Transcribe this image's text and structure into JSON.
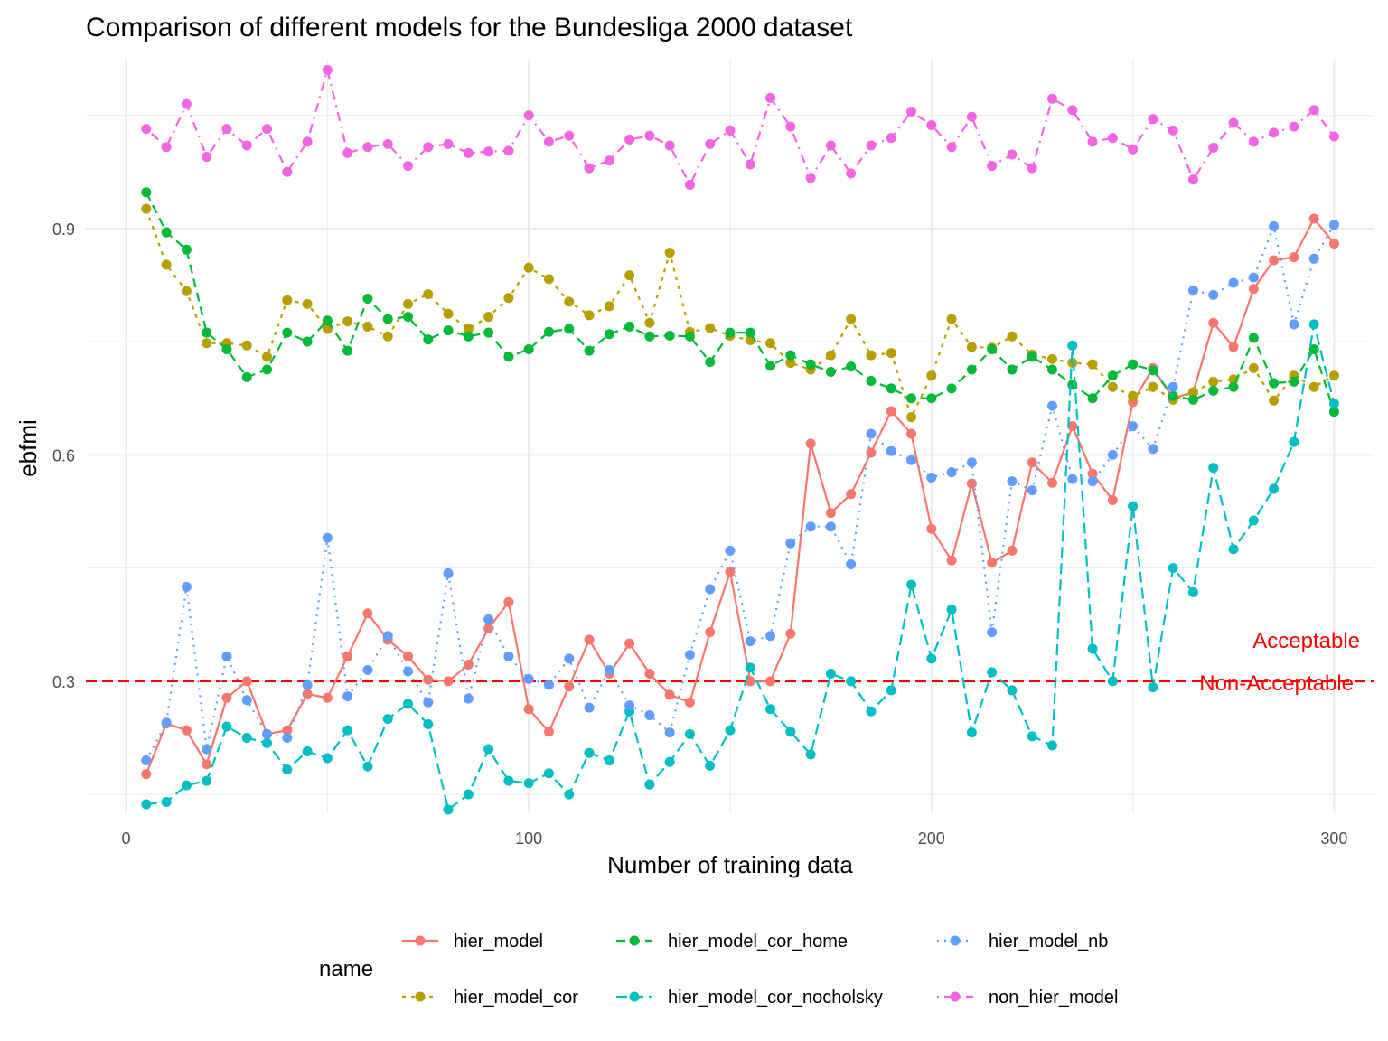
{
  "chart_data": {
    "type": "line",
    "title": "Comparison of different models for the Bundesliga 2000 dataset",
    "xlabel": "Number of training data",
    "ylabel": "ebfmi",
    "xlim": [
      -10,
      310
    ],
    "ylim": [
      0.125,
      1.125
    ],
    "x_ticks": [
      0,
      100,
      200,
      300
    ],
    "x_tick_labels": [
      "0",
      "100",
      "200",
      "300"
    ],
    "y_ticks": [
      0.3,
      0.6,
      0.9
    ],
    "y_tick_labels": [
      "0.3",
      "0.6",
      "0.9"
    ],
    "grid": true,
    "legend": {
      "title": "name",
      "position": "bottom",
      "order": [
        "hier_model",
        "hier_model_cor_home",
        "hier_model_nb",
        "hier_model_cor",
        "hier_model_cor_nocholsky",
        "non_hier_model"
      ]
    },
    "reference_line": {
      "y": 0.3,
      "color": "#ff0000",
      "label_above": "Acceptable",
      "label_below": "Non-Acceptable"
    },
    "x": [
      5,
      10,
      15,
      20,
      25,
      30,
      35,
      40,
      45,
      50,
      55,
      60,
      65,
      70,
      75,
      80,
      85,
      90,
      95,
      100,
      105,
      110,
      115,
      120,
      125,
      130,
      135,
      140,
      145,
      150,
      155,
      160,
      165,
      170,
      175,
      180,
      185,
      190,
      195,
      200,
      205,
      210,
      215,
      220,
      225,
      230,
      235,
      240,
      245,
      250,
      255,
      260,
      265,
      270,
      275,
      280,
      285,
      290,
      295,
      300
    ],
    "series": [
      {
        "name": "hier_model",
        "color": "#F8766D",
        "dash": "",
        "values": [
          0.177,
          0.244,
          0.235,
          0.19,
          0.278,
          0.3,
          0.23,
          0.235,
          0.283,
          0.278,
          0.333,
          0.39,
          0.355,
          0.333,
          0.302,
          0.3,
          0.322,
          0.37,
          0.405,
          0.263,
          0.233,
          0.293,
          0.355,
          0.31,
          0.35,
          0.31,
          0.282,
          0.272,
          0.365,
          0.445,
          0.3,
          0.3,
          0.363,
          0.615,
          0.523,
          0.548,
          0.603,
          0.658,
          0.628,
          0.502,
          0.46,
          0.562,
          0.457,
          0.473,
          0.59,
          0.563,
          0.638,
          0.575,
          0.54,
          0.67,
          0.715,
          0.675,
          0.683,
          0.775,
          0.743,
          0.82,
          0.858,
          0.862,
          0.913,
          0.88
        ]
      },
      {
        "name": "hier_model_cor",
        "color": "#B79F00",
        "dash": "4,6",
        "values": [
          0.926,
          0.852,
          0.817,
          0.748,
          0.748,
          0.745,
          0.73,
          0.805,
          0.8,
          0.767,
          0.777,
          0.77,
          0.757,
          0.8,
          0.813,
          0.787,
          0.767,
          0.783,
          0.808,
          0.848,
          0.833,
          0.803,
          0.785,
          0.797,
          0.838,
          0.775,
          0.868,
          0.763,
          0.768,
          0.758,
          0.752,
          0.748,
          0.722,
          0.713,
          0.732,
          0.78,
          0.732,
          0.735,
          0.65,
          0.705,
          0.78,
          0.743,
          0.742,
          0.757,
          0.733,
          0.727,
          0.722,
          0.72,
          0.69,
          0.678,
          0.69,
          0.673,
          0.683,
          0.697,
          0.7,
          0.715,
          0.672,
          0.705,
          0.69,
          0.705
        ]
      },
      {
        "name": "hier_model_cor_home",
        "color": "#00BA38",
        "dash": "10,6",
        "values": [
          0.948,
          0.895,
          0.872,
          0.762,
          0.74,
          0.703,
          0.713,
          0.762,
          0.75,
          0.778,
          0.738,
          0.807,
          0.78,
          0.783,
          0.753,
          0.765,
          0.757,
          0.762,
          0.73,
          0.74,
          0.763,
          0.767,
          0.738,
          0.76,
          0.77,
          0.757,
          0.758,
          0.757,
          0.723,
          0.762,
          0.762,
          0.718,
          0.732,
          0.72,
          0.71,
          0.717,
          0.698,
          0.688,
          0.675,
          0.675,
          0.688,
          0.713,
          0.74,
          0.713,
          0.73,
          0.713,
          0.693,
          0.675,
          0.705,
          0.72,
          0.712,
          0.678,
          0.673,
          0.685,
          0.69,
          0.755,
          0.695,
          0.697,
          0.74,
          0.657
        ]
      },
      {
        "name": "hier_model_cor_nocholsky",
        "color": "#00BFC4",
        "dash": "12,6",
        "values": [
          0.137,
          0.14,
          0.162,
          0.168,
          0.24,
          0.225,
          0.218,
          0.183,
          0.207,
          0.198,
          0.235,
          0.187,
          0.25,
          0.27,
          0.243,
          0.13,
          0.15,
          0.21,
          0.168,
          0.165,
          0.178,
          0.15,
          0.205,
          0.195,
          0.26,
          0.163,
          0.193,
          0.23,
          0.188,
          0.235,
          0.318,
          0.263,
          0.233,
          0.203,
          0.31,
          0.3,
          0.26,
          0.288,
          0.428,
          0.33,
          0.395,
          0.232,
          0.312,
          0.288,
          0.227,
          0.215,
          0.745,
          0.343,
          0.3,
          0.532,
          0.292,
          0.45,
          0.418,
          0.583,
          0.475,
          0.513,
          0.555,
          0.617,
          0.773,
          0.668
        ]
      },
      {
        "name": "hier_model_nb",
        "color": "#619CFF",
        "dash": "2,6",
        "values": [
          0.195,
          0.245,
          0.425,
          0.21,
          0.333,
          0.275,
          0.23,
          0.225,
          0.295,
          0.49,
          0.28,
          0.315,
          0.36,
          0.313,
          0.272,
          0.443,
          0.277,
          0.382,
          0.333,
          0.303,
          0.295,
          0.33,
          0.265,
          0.315,
          0.268,
          0.255,
          0.232,
          0.335,
          0.422,
          0.473,
          0.353,
          0.36,
          0.483,
          0.505,
          0.505,
          0.455,
          0.628,
          0.605,
          0.593,
          0.57,
          0.577,
          0.59,
          0.365,
          0.565,
          0.553,
          0.665,
          0.568,
          0.565,
          0.6,
          0.638,
          0.608,
          0.69,
          0.818,
          0.812,
          0.828,
          0.835,
          0.903,
          0.773,
          0.86,
          0.905
        ]
      },
      {
        "name": "non_hier_model",
        "color": "#F564E3",
        "dash": "2,6,10,6",
        "values": [
          1.032,
          1.008,
          1.065,
          0.995,
          1.032,
          1.01,
          1.032,
          0.975,
          1.015,
          1.11,
          1.0,
          1.008,
          1.012,
          0.983,
          1.008,
          1.012,
          1.0,
          1.002,
          1.003,
          1.05,
          1.015,
          1.023,
          0.98,
          0.99,
          1.018,
          1.023,
          1.01,
          0.958,
          1.012,
          1.03,
          0.985,
          1.073,
          1.035,
          0.967,
          1.01,
          0.973,
          1.01,
          1.02,
          1.055,
          1.037,
          1.008,
          1.048,
          0.983,
          0.998,
          0.98,
          1.072,
          1.057,
          1.015,
          1.02,
          1.005,
          1.045,
          1.03,
          0.965,
          1.007,
          1.04,
          1.015,
          1.027,
          1.035,
          1.057,
          1.022
        ]
      }
    ]
  }
}
